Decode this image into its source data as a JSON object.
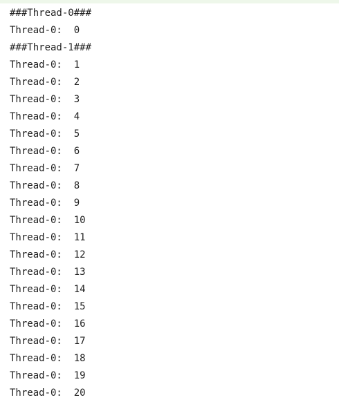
{
  "console": {
    "lines": [
      "###Thread-0###",
      "Thread-0:  0",
      "###Thread-1###",
      "Thread-0:  1",
      "Thread-0:  2",
      "Thread-0:  3",
      "Thread-0:  4",
      "Thread-0:  5",
      "Thread-0:  6",
      "Thread-0:  7",
      "Thread-0:  8",
      "Thread-0:  9",
      "Thread-0:  10",
      "Thread-0:  11",
      "Thread-0:  12",
      "Thread-0:  13",
      "Thread-0:  14",
      "Thread-0:  15",
      "Thread-0:  16",
      "Thread-0:  17",
      "Thread-0:  18",
      "Thread-0:  19",
      "Thread-0:  20"
    ]
  },
  "colors": {
    "text": "#1f1f1f",
    "background": "#ffffff",
    "top_strip": "#eef7ea"
  }
}
